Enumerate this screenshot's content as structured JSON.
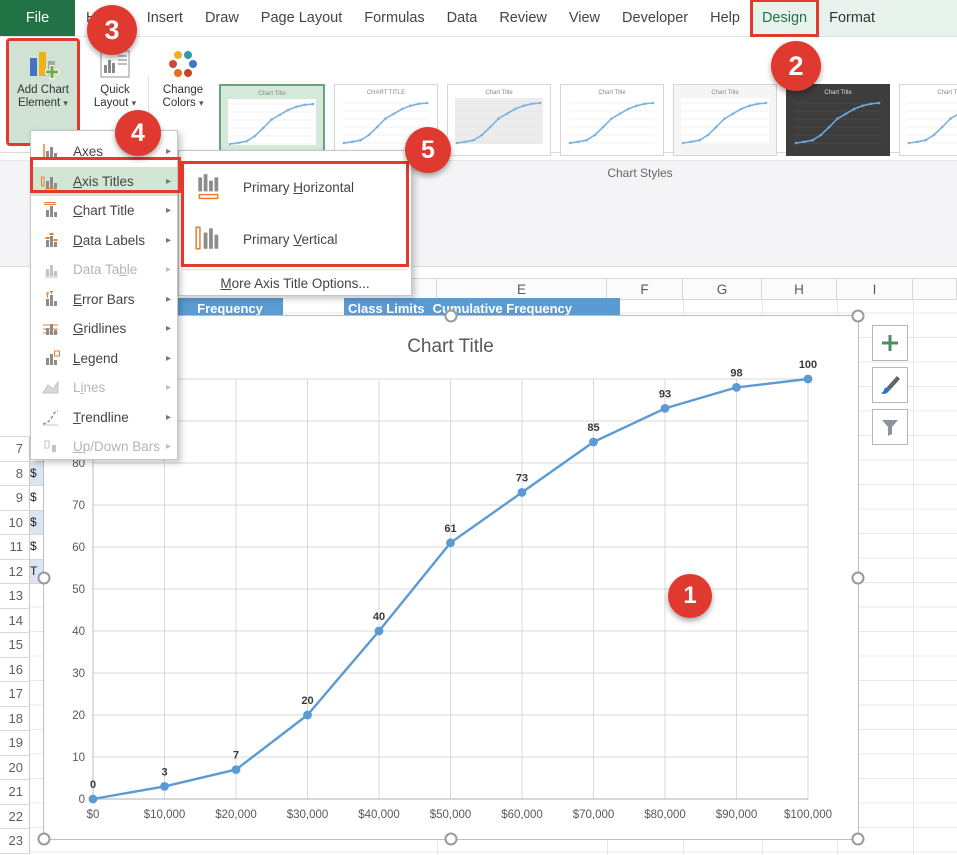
{
  "ribbon": {
    "tabs": [
      {
        "label": "File",
        "type": "file"
      },
      {
        "label": "Home"
      },
      {
        "label": "Insert"
      },
      {
        "label": "Draw"
      },
      {
        "label": "Page Layout"
      },
      {
        "label": "Formulas"
      },
      {
        "label": "Data"
      },
      {
        "label": "Review"
      },
      {
        "label": "View"
      },
      {
        "label": "Developer"
      },
      {
        "label": "Help"
      },
      {
        "label": "Design",
        "contextual": true,
        "active": true
      },
      {
        "label": "Format",
        "contextual": true
      }
    ],
    "add_chart_element": {
      "line1": "Add Chart",
      "line2": "Element"
    },
    "quick_layout": {
      "line1": "Quick",
      "line2": "Layout"
    },
    "change_colors": {
      "line1": "Change",
      "line2": "Colors"
    },
    "group_label": "Chart Styles",
    "dropdown_arrow": "▾",
    "style_thumbnails": [
      {
        "title": "Chart Title",
        "variant": "selected"
      },
      {
        "title": "CHART TITLE",
        "variant": "white"
      },
      {
        "title": "Chart Title",
        "variant": "grayplot"
      },
      {
        "title": "Chart Title",
        "variant": "white"
      },
      {
        "title": "Chart Title",
        "variant": "light"
      },
      {
        "title": "Chart Title",
        "variant": "dark"
      },
      {
        "title": "Chart Title",
        "variant": "white"
      }
    ]
  },
  "menu": {
    "items": [
      {
        "label": "Axes",
        "accel_index": 1,
        "icon": "axes-icon"
      },
      {
        "label": "Axis Titles",
        "accel_index": 0,
        "icon": "axis-titles-icon",
        "selected": true
      },
      {
        "label": "Chart Title",
        "accel_index": 0,
        "icon": "chart-title-icon"
      },
      {
        "label": "Data Labels",
        "accel_index": 0,
        "icon": "data-labels-icon"
      },
      {
        "label": "Data Table",
        "accel_index": 7,
        "icon": "data-table-icon",
        "disabled": true
      },
      {
        "label": "Error Bars",
        "accel_index": 0,
        "icon": "error-bars-icon"
      },
      {
        "label": "Gridlines",
        "accel_index": 0,
        "icon": "gridlines-icon"
      },
      {
        "label": "Legend",
        "accel_index": 0,
        "icon": "legend-icon"
      },
      {
        "label": "Lines",
        "accel_index": 1,
        "icon": "lines-icon",
        "disabled": true
      },
      {
        "label": "Trendline",
        "accel_index": 0,
        "icon": "trendline-icon"
      },
      {
        "label": "Up/Down Bars",
        "accel_index": 0,
        "icon": "updown-bars-icon",
        "disabled": true
      }
    ]
  },
  "submenu": {
    "items": [
      {
        "label": "Primary Horizontal",
        "accel_index": 8,
        "icon": "primary-horizontal-icon"
      },
      {
        "label": "Primary Vertical",
        "accel_index": 8,
        "icon": "primary-vertical-icon"
      }
    ],
    "footer": {
      "label": "More Axis Title Options...",
      "accel_index": 0
    }
  },
  "sheet": {
    "column_headers": [
      "E",
      "F",
      "G",
      "H",
      "I"
    ],
    "row_numbers": [
      "7",
      "8",
      "9",
      "10",
      "11",
      "12",
      "13",
      "14",
      "15",
      "16",
      "17",
      "18",
      "19",
      "20",
      "21",
      "22",
      "23"
    ],
    "col_a_cells": [
      {
        "text": "$",
        "shaded": false
      },
      {
        "text": "$",
        "shaded": true
      },
      {
        "text": "$",
        "shaded": false
      },
      {
        "text": "$",
        "shaded": true
      },
      {
        "text": "$",
        "shaded": false
      },
      {
        "text": "T",
        "shaded": true
      }
    ],
    "table_header_segments": {
      "frequency": "Frequency",
      "class_limits": "Class Limits",
      "cumulative_frequency": "Cumulative Frequency"
    }
  },
  "annotations": {
    "badges": [
      "1",
      "2",
      "3",
      "4",
      "5"
    ]
  },
  "chart_data": {
    "type": "line",
    "title": "Chart Title",
    "categories": [
      "$0",
      "$10,000",
      "$20,000",
      "$30,000",
      "$40,000",
      "$50,000",
      "$60,000",
      "$70,000",
      "$80,000",
      "$90,000",
      "$100,000"
    ],
    "series": [
      {
        "name": "Cumulative Frequency",
        "values": [
          0,
          3,
          7,
          20,
          40,
          61,
          73,
          85,
          93,
          98,
          100
        ]
      }
    ],
    "ylim": [
      0,
      100
    ],
    "ytick_step": 10,
    "yticks": [
      0,
      10,
      20,
      30,
      40,
      50,
      60,
      70,
      80,
      90,
      100
    ],
    "grid": true,
    "data_labels": "above",
    "legend": "none",
    "line_color": "#5B9BD5",
    "gridline_color": "#d9d9d9",
    "axis_label_color": "#595959"
  }
}
